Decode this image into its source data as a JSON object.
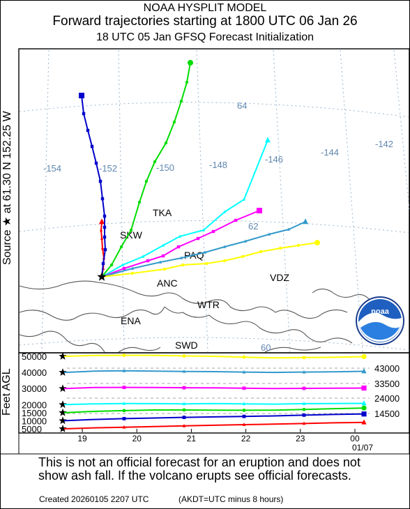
{
  "header": {
    "line1": "NOAA HYSPLIT MODEL",
    "line2": "Forward trajectories starting at 1800 UTC 06 Jan 26",
    "line3": "18 UTC 05 Jan    GFSQ  Forecast Initialization"
  },
  "source_label": "Source ★  at   61.30 N  152.25 W",
  "feet_label": "Feet AGL",
  "footer": {
    "line1": "This is not an official forecast for an eruption and does not",
    "line2": "show ash fall. If the volcano erupts see official forecasts.",
    "created": "Created 20260105 2207 UTC",
    "akdt": "(AKDT=UTC minus 8 hours)"
  },
  "logo": {
    "text": "noaa"
  },
  "chart_data": [
    {
      "type": "map",
      "source": {
        "lat": 61.3,
        "lon": -152.25
      },
      "longitude_labels": [
        "-154",
        "-152",
        "-150",
        "-148",
        "-146",
        "-144",
        "-142"
      ],
      "latitude_labels": [
        "64",
        "62",
        "60"
      ],
      "stations": [
        "TKA",
        "SKW",
        "PAQ",
        "ANC",
        "VDZ",
        "WTR",
        "ENA",
        "SWD"
      ],
      "series": [
        {
          "start_height_ft": 5000,
          "color": "#ff0000",
          "marker": "triangle"
        },
        {
          "start_height_ft": 10000,
          "color": "#0000cc",
          "marker": "square"
        },
        {
          "start_height_ft": 15000,
          "color": "#00dd00",
          "marker": "circle"
        },
        {
          "start_height_ft": 20000,
          "color": "#00ffff",
          "marker": "triangle"
        },
        {
          "start_height_ft": 30000,
          "color": "#ff00ff",
          "marker": "square"
        },
        {
          "start_height_ft": 40000,
          "color": "#3399cc",
          "marker": "triangle"
        },
        {
          "start_height_ft": 50000,
          "color": "#ffff00",
          "marker": "circle"
        }
      ]
    },
    {
      "type": "line",
      "ylabel": "Feet AGL",
      "x_ticks": [
        "19",
        "20",
        "21",
        "22",
        "23",
        "00"
      ],
      "x_sublabel": "01/07",
      "y_left_ticks": [
        "50000",
        "40000",
        "30000",
        "20000",
        "15000",
        "10000",
        "5000"
      ],
      "y_right_ticks": [
        "43000",
        "33500",
        "24000",
        "14500"
      ],
      "ylim": [
        5000,
        50000
      ],
      "x_hours": [
        0,
        3,
        6,
        9,
        12,
        15,
        18,
        21,
        24,
        27,
        30
      ],
      "series": [
        {
          "color": "#ffff00",
          "marker": "circle",
          "values": [
            50000,
            50500,
            50600,
            50600,
            50200,
            50000,
            49500,
            49000,
            49200,
            49400,
            49800
          ]
        },
        {
          "color": "#3399cc",
          "marker": "triangle",
          "values": [
            40000,
            40800,
            41000,
            40800,
            40600,
            40500,
            40200,
            40000,
            40200,
            40400,
            40700
          ]
        },
        {
          "color": "#ff00ff",
          "marker": "square",
          "values": [
            30000,
            30600,
            30700,
            30600,
            30500,
            30400,
            30200,
            30000,
            30100,
            30200,
            30300
          ]
        },
        {
          "color": "#00ffff",
          "marker": "triangle",
          "values": [
            20000,
            20500,
            20700,
            20600,
            20500,
            20700,
            20500,
            20300,
            20600,
            20700,
            20800
          ]
        },
        {
          "color": "#00dd00",
          "marker": "circle",
          "values": [
            15000,
            15800,
            16300,
            16700,
            16700,
            16600,
            16500,
            16600,
            17000,
            17500,
            17900
          ]
        },
        {
          "color": "#0000cc",
          "marker": "square",
          "values": [
            10000,
            10800,
            11300,
            11700,
            12100,
            12400,
            12700,
            13000,
            13500,
            13900,
            14200
          ]
        },
        {
          "color": "#ff0000",
          "marker": "triangle",
          "values": [
            5000,
            5600,
            6000,
            6400,
            6800,
            7200,
            7600,
            7900,
            8300,
            8700,
            9000
          ]
        }
      ]
    }
  ]
}
